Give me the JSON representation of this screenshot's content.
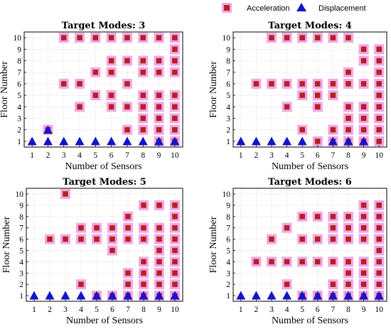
{
  "legend": {
    "acceleration_label": "Acceleration",
    "displacement_label": "Displacement",
    "acceleration_color": "#b22222",
    "displacement_color": "#1414c8",
    "halo_color": "#f3a6e6"
  },
  "chart_data": [
    {
      "type": "scatter",
      "title": "Target Modes: 3",
      "xlabel": "Number of Sensors",
      "ylabel": "Floor Number",
      "xlim": [
        0.5,
        10.5
      ],
      "ylim": [
        0.5,
        10.5
      ],
      "xticks": [
        "1",
        "2",
        "3",
        "4",
        "5",
        "6",
        "7",
        "8",
        "9",
        "10"
      ],
      "yticks": [
        "1",
        "2",
        "3",
        "4",
        "5",
        "6",
        "7",
        "8",
        "9",
        "10"
      ],
      "grid": true,
      "series": [
        {
          "name": "Acceleration",
          "points": [
            [
              2,
              2
            ],
            [
              3,
              6
            ],
            [
              3,
              10
            ],
            [
              4,
              4
            ],
            [
              4,
              6
            ],
            [
              4,
              10
            ],
            [
              5,
              5
            ],
            [
              5,
              7
            ],
            [
              5,
              10
            ],
            [
              6,
              4
            ],
            [
              6,
              5
            ],
            [
              6,
              7
            ],
            [
              6,
              8
            ],
            [
              6,
              10
            ],
            [
              7,
              2
            ],
            [
              7,
              4
            ],
            [
              7,
              6
            ],
            [
              7,
              8
            ],
            [
              7,
              10
            ],
            [
              8,
              2
            ],
            [
              8,
              3
            ],
            [
              8,
              4
            ],
            [
              8,
              5
            ],
            [
              8,
              7
            ],
            [
              8,
              8
            ],
            [
              8,
              10
            ],
            [
              9,
              1
            ],
            [
              9,
              2
            ],
            [
              9,
              3
            ],
            [
              9,
              4
            ],
            [
              9,
              5
            ],
            [
              9,
              7
            ],
            [
              9,
              8
            ],
            [
              9,
              10
            ],
            [
              10,
              1
            ],
            [
              10,
              2
            ],
            [
              10,
              3
            ],
            [
              10,
              4
            ],
            [
              10,
              5
            ],
            [
              10,
              7
            ],
            [
              10,
              8
            ],
            [
              10,
              9
            ],
            [
              10,
              10
            ]
          ]
        },
        {
          "name": "Displacement",
          "points": [
            [
              1,
              1
            ],
            [
              2,
              1
            ],
            [
              2,
              2
            ],
            [
              3,
              1
            ],
            [
              4,
              1
            ],
            [
              5,
              1
            ],
            [
              6,
              1
            ],
            [
              7,
              1
            ],
            [
              8,
              1
            ],
            [
              9,
              1
            ],
            [
              10,
              1
            ]
          ]
        }
      ]
    },
    {
      "type": "scatter",
      "title": "Target Modes: 4",
      "xlabel": "Number of Sensors",
      "ylabel": "Floor Number",
      "xlim": [
        0.5,
        10.5
      ],
      "ylim": [
        0.5,
        10.5
      ],
      "xticks": [
        "1",
        "2",
        "3",
        "4",
        "5",
        "6",
        "7",
        "8",
        "9",
        "10"
      ],
      "yticks": [
        "1",
        "2",
        "3",
        "4",
        "5",
        "6",
        "7",
        "8",
        "9",
        "10"
      ],
      "grid": true,
      "series": [
        {
          "name": "Acceleration",
          "points": [
            [
              2,
              6
            ],
            [
              3,
              6
            ],
            [
              3,
              10
            ],
            [
              4,
              4
            ],
            [
              4,
              6
            ],
            [
              4,
              10
            ],
            [
              5,
              2
            ],
            [
              5,
              5
            ],
            [
              5,
              6
            ],
            [
              5,
              10
            ],
            [
              6,
              1
            ],
            [
              6,
              4
            ],
            [
              6,
              5
            ],
            [
              6,
              6
            ],
            [
              6,
              10
            ],
            [
              7,
              1
            ],
            [
              7,
              2
            ],
            [
              7,
              5
            ],
            [
              7,
              6
            ],
            [
              7,
              10
            ],
            [
              8,
              1
            ],
            [
              8,
              2
            ],
            [
              8,
              3
            ],
            [
              8,
              4
            ],
            [
              8,
              6
            ],
            [
              8,
              7
            ],
            [
              8,
              10
            ],
            [
              9,
              1
            ],
            [
              9,
              2
            ],
            [
              9,
              3
            ],
            [
              9,
              4
            ],
            [
              9,
              6
            ],
            [
              9,
              8
            ],
            [
              9,
              9
            ],
            [
              10,
              1
            ],
            [
              10,
              2
            ],
            [
              10,
              3
            ],
            [
              10,
              4
            ],
            [
              10,
              5
            ],
            [
              10,
              6
            ],
            [
              10,
              7
            ],
            [
              10,
              8
            ],
            [
              10,
              9
            ]
          ]
        },
        {
          "name": "Displacement",
          "points": [
            [
              1,
              1
            ],
            [
              2,
              1
            ],
            [
              3,
              1
            ],
            [
              4,
              1
            ],
            [
              5,
              1
            ],
            [
              7,
              1
            ],
            [
              8,
              1
            ],
            [
              9,
              1
            ]
          ]
        }
      ]
    },
    {
      "type": "scatter",
      "title": "Target Modes: 5",
      "xlabel": "Number of Sensors",
      "ylabel": "Floor Number",
      "xlim": [
        0.5,
        10.5
      ],
      "ylim": [
        0.5,
        10.5
      ],
      "xticks": [
        "1",
        "2",
        "3",
        "4",
        "5",
        "6",
        "7",
        "8",
        "9",
        "10"
      ],
      "yticks": [
        "1",
        "2",
        "3",
        "4",
        "5",
        "6",
        "7",
        "8",
        "9",
        "10"
      ],
      "grid": true,
      "series": [
        {
          "name": "Acceleration",
          "points": [
            [
              2,
              6
            ],
            [
              3,
              6
            ],
            [
              3,
              10
            ],
            [
              4,
              2
            ],
            [
              4,
              6
            ],
            [
              4,
              7
            ],
            [
              5,
              1
            ],
            [
              5,
              6
            ],
            [
              5,
              7
            ],
            [
              6,
              1
            ],
            [
              6,
              5
            ],
            [
              6,
              6
            ],
            [
              6,
              7
            ],
            [
              7,
              1
            ],
            [
              7,
              2
            ],
            [
              7,
              3
            ],
            [
              7,
              6
            ],
            [
              7,
              7
            ],
            [
              7,
              8
            ],
            [
              8,
              1
            ],
            [
              8,
              2
            ],
            [
              8,
              3
            ],
            [
              8,
              4
            ],
            [
              8,
              6
            ],
            [
              8,
              7
            ],
            [
              8,
              9
            ],
            [
              9,
              1
            ],
            [
              9,
              2
            ],
            [
              9,
              3
            ],
            [
              9,
              4
            ],
            [
              9,
              5
            ],
            [
              9,
              6
            ],
            [
              9,
              7
            ],
            [
              9,
              9
            ],
            [
              10,
              1
            ],
            [
              10,
              2
            ],
            [
              10,
              3
            ],
            [
              10,
              4
            ],
            [
              10,
              5
            ],
            [
              10,
              6
            ],
            [
              10,
              7
            ],
            [
              10,
              8
            ],
            [
              10,
              9
            ]
          ]
        },
        {
          "name": "Displacement",
          "points": [
            [
              1,
              1
            ],
            [
              2,
              1
            ],
            [
              3,
              1
            ],
            [
              4,
              1
            ],
            [
              5,
              1
            ],
            [
              6,
              1
            ],
            [
              7,
              1
            ],
            [
              8,
              1
            ],
            [
              9,
              1
            ],
            [
              10,
              1
            ]
          ]
        }
      ]
    },
    {
      "type": "scatter",
      "title": "Target Modes: 6",
      "xlabel": "Number of Sensors",
      "ylabel": "Floor Number",
      "xlim": [
        0.5,
        10.5
      ],
      "ylim": [
        0.5,
        10.5
      ],
      "xticks": [
        "1",
        "2",
        "3",
        "4",
        "5",
        "6",
        "7",
        "8",
        "9",
        "10"
      ],
      "yticks": [
        "1",
        "2",
        "3",
        "4",
        "5",
        "6",
        "7",
        "8",
        "9",
        "10"
      ],
      "grid": true,
      "series": [
        {
          "name": "Acceleration",
          "points": [
            [
              2,
              4
            ],
            [
              3,
              4
            ],
            [
              3,
              6
            ],
            [
              4,
              2
            ],
            [
              4,
              4
            ],
            [
              4,
              7
            ],
            [
              5,
              1
            ],
            [
              5,
              4
            ],
            [
              5,
              6
            ],
            [
              5,
              8
            ],
            [
              6,
              1
            ],
            [
              6,
              4
            ],
            [
              6,
              6
            ],
            [
              6,
              8
            ],
            [
              7,
              1
            ],
            [
              7,
              2
            ],
            [
              7,
              4
            ],
            [
              7,
              6
            ],
            [
              7,
              7
            ],
            [
              7,
              8
            ],
            [
              8,
              1
            ],
            [
              8,
              2
            ],
            [
              8,
              3
            ],
            [
              8,
              4
            ],
            [
              8,
              6
            ],
            [
              8,
              7
            ],
            [
              8,
              8
            ],
            [
              9,
              1
            ],
            [
              9,
              2
            ],
            [
              9,
              3
            ],
            [
              9,
              4
            ],
            [
              9,
              6
            ],
            [
              9,
              7
            ],
            [
              9,
              8
            ],
            [
              9,
              9
            ],
            [
              10,
              1
            ],
            [
              10,
              2
            ],
            [
              10,
              3
            ],
            [
              10,
              4
            ],
            [
              10,
              5
            ],
            [
              10,
              6
            ],
            [
              10,
              7
            ],
            [
              10,
              8
            ],
            [
              10,
              9
            ]
          ]
        },
        {
          "name": "Displacement",
          "points": [
            [
              1,
              1
            ],
            [
              2,
              1
            ],
            [
              3,
              1
            ],
            [
              4,
              1
            ],
            [
              5,
              1
            ],
            [
              6,
              1
            ],
            [
              7,
              1
            ],
            [
              8,
              1
            ],
            [
              9,
              1
            ],
            [
              10,
              1
            ]
          ]
        }
      ]
    }
  ]
}
